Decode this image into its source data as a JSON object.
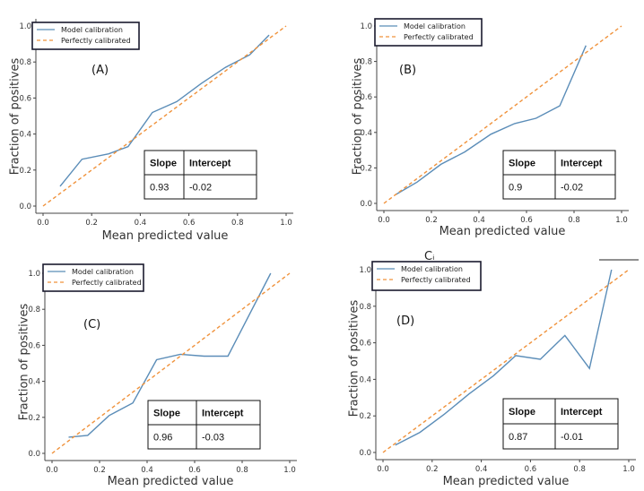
{
  "colors": {
    "model": "#5b8db8",
    "perfect": "#f0923b",
    "axis": "#444444",
    "legend_border": "#1a1a2e"
  },
  "stray_text": "Cᵢ",
  "chart_data": [
    {
      "type": "line",
      "panel_label": "(A)",
      "xlabel": "Mean predicted value",
      "ylabel": "Fraction of positives",
      "xlim": [
        0,
        1
      ],
      "ylim": [
        0,
        1
      ],
      "x_ticks": [
        "0.0",
        "0.2",
        "0.4",
        "0.6",
        "0.8",
        "1.0"
      ],
      "y_ticks": [
        "0.0",
        "0.2",
        "0.4",
        "0.6",
        "0.8",
        "1.0"
      ],
      "legend": [
        "Model calibration",
        "Perfectly calibrated"
      ],
      "series": [
        {
          "name": "Model calibration",
          "x": [
            0.07,
            0.16,
            0.27,
            0.35,
            0.45,
            0.55,
            0.65,
            0.75,
            0.85,
            0.93
          ],
          "y": [
            0.11,
            0.26,
            0.29,
            0.33,
            0.52,
            0.58,
            0.68,
            0.77,
            0.84,
            0.95
          ]
        },
        {
          "name": "Perfectly calibrated",
          "x": [
            0,
            1
          ],
          "y": [
            0,
            1
          ]
        }
      ],
      "table": {
        "headers": [
          "Slope",
          "Intercept"
        ],
        "values": [
          "0.93",
          "-0.02"
        ]
      }
    },
    {
      "type": "line",
      "panel_label": "(B)",
      "xlabel": "Mean predicted value",
      "ylabel": "Fraction of positives",
      "xlim": [
        0,
        1
      ],
      "ylim": [
        0,
        1
      ],
      "x_ticks": [
        "0.0",
        "0.2",
        "0.4",
        "0.6",
        "0.8",
        "1.0"
      ],
      "y_ticks": [
        "0.0",
        "0.2",
        "0.4",
        "0.6",
        "0.8",
        "1.0"
      ],
      "legend": [
        "Model calibration",
        "Perfectly calibrated"
      ],
      "series": [
        {
          "name": "Model calibration",
          "x": [
            0.05,
            0.14,
            0.24,
            0.34,
            0.45,
            0.55,
            0.64,
            0.74,
            0.85
          ],
          "y": [
            0.05,
            0.12,
            0.22,
            0.29,
            0.39,
            0.45,
            0.48,
            0.55,
            0.89
          ]
        },
        {
          "name": "Perfectly calibrated",
          "x": [
            0,
            1
          ],
          "y": [
            0,
            1
          ]
        }
      ],
      "table": {
        "headers": [
          "Slope",
          "Intercept"
        ],
        "values": [
          "0.9",
          "-0.02"
        ]
      }
    },
    {
      "type": "line",
      "panel_label": "(C)",
      "xlabel": "Mean predicted value",
      "ylabel": "Fraction of positives",
      "xlim": [
        0,
        1
      ],
      "ylim": [
        0,
        1
      ],
      "x_ticks": [
        "0.0",
        "0.2",
        "0.4",
        "0.6",
        "0.8",
        "1.0"
      ],
      "y_ticks": [
        "0.0",
        "0.2",
        "0.4",
        "0.6",
        "0.8",
        "1.0"
      ],
      "legend": [
        "Model calibration",
        "Perfectly calibrated"
      ],
      "series": [
        {
          "name": "Model calibration",
          "x": [
            0.07,
            0.15,
            0.24,
            0.34,
            0.44,
            0.54,
            0.64,
            0.74,
            0.92
          ],
          "y": [
            0.09,
            0.1,
            0.21,
            0.28,
            0.52,
            0.55,
            0.54,
            0.54,
            1.0
          ]
        },
        {
          "name": "Perfectly calibrated",
          "x": [
            0,
            1
          ],
          "y": [
            0,
            1
          ]
        }
      ],
      "table": {
        "headers": [
          "Slope",
          "Intercept"
        ],
        "values": [
          "0.96",
          "-0.03"
        ]
      }
    },
    {
      "type": "line",
      "panel_label": "(D)",
      "xlabel": "Mean predicted value",
      "ylabel": "Fraction of positives",
      "xlim": [
        0,
        1
      ],
      "ylim": [
        0,
        1
      ],
      "x_ticks": [
        "0.0",
        "0.2",
        "0.4",
        "0.6",
        "0.8",
        "1.0"
      ],
      "y_ticks": [
        "0.0",
        "0.2",
        "0.4",
        "0.6",
        "0.8",
        "1.0"
      ],
      "legend": [
        "Model calibration",
        "Perfectly calibrated"
      ],
      "series": [
        {
          "name": "Model calibration",
          "x": [
            0.05,
            0.15,
            0.25,
            0.35,
            0.45,
            0.54,
            0.64,
            0.74,
            0.84,
            0.93
          ],
          "y": [
            0.04,
            0.11,
            0.21,
            0.32,
            0.42,
            0.53,
            0.51,
            0.64,
            0.46,
            1.0
          ]
        },
        {
          "name": "Perfectly calibrated",
          "x": [
            0,
            1
          ],
          "y": [
            0,
            1
          ]
        }
      ],
      "table": {
        "headers": [
          "Slope",
          "Intercept"
        ],
        "values": [
          "0.87",
          "-0.01"
        ]
      }
    }
  ]
}
